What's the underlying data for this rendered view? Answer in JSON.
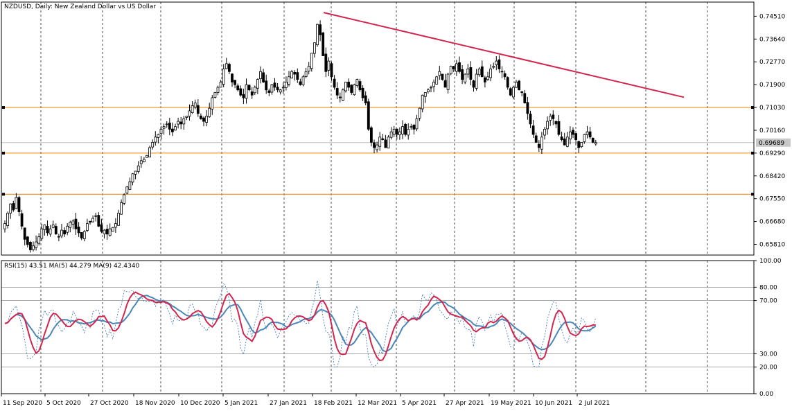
{
  "chart_data": [
    {
      "type": "candlestick",
      "title": "NZDUSD, Daily:  New Zealand Dollar vs US Dollar",
      "ylim": [
        0.654,
        0.7505
      ],
      "y_ticks": [
        "0.74510",
        "0.73640",
        "0.72770",
        "0.71900",
        "0.71030",
        "0.70160",
        "0.69290",
        "0.68420",
        "0.67550",
        "0.66680",
        "0.65810"
      ],
      "current_price": "0.69689",
      "horizontal_levels": [
        0.7103,
        0.6929,
        0.6772
      ],
      "trendline": {
        "from": {
          "date": "2021-02-18",
          "price": 0.7465
        },
        "to": {
          "date": "2021-07-17",
          "price": 0.7142
        }
      },
      "closes": [
        0.666,
        0.67,
        0.6735,
        0.6712,
        0.676,
        0.6705,
        0.665,
        0.66,
        0.658,
        0.656,
        0.6575,
        0.659,
        0.661,
        0.664,
        0.6655,
        0.6625,
        0.664,
        0.6655,
        0.662,
        0.661,
        0.6635,
        0.662,
        0.665,
        0.6665,
        0.667,
        0.664,
        0.6625,
        0.6605,
        0.663,
        0.666,
        0.6665,
        0.668,
        0.669,
        0.665,
        0.663,
        0.6635,
        0.662,
        0.664,
        0.6645,
        0.666,
        0.67,
        0.674,
        0.677,
        0.68,
        0.682,
        0.685,
        0.686,
        0.688,
        0.69,
        0.6905,
        0.692,
        0.695,
        0.697,
        0.699,
        0.7,
        0.702,
        0.703,
        0.704,
        0.702,
        0.701,
        0.703,
        0.705,
        0.704,
        0.706,
        0.707,
        0.709,
        0.711,
        0.712,
        0.708,
        0.706,
        0.705,
        0.707,
        0.71,
        0.714,
        0.716,
        0.718,
        0.72,
        0.725,
        0.727,
        0.724,
        0.72,
        0.719,
        0.717,
        0.715,
        0.714,
        0.719,
        0.717,
        0.715,
        0.718,
        0.721,
        0.724,
        0.72,
        0.717,
        0.716,
        0.719,
        0.718,
        0.717,
        0.717,
        0.718,
        0.72,
        0.722,
        0.724,
        0.723,
        0.721,
        0.719,
        0.722,
        0.724,
        0.726,
        0.731,
        0.735,
        0.742,
        0.738,
        0.73,
        0.724,
        0.728,
        0.722,
        0.718,
        0.715,
        0.714,
        0.717,
        0.72,
        0.718,
        0.716,
        0.719,
        0.721,
        0.717,
        0.714,
        0.712,
        0.702,
        0.697,
        0.695,
        0.696,
        0.699,
        0.698,
        0.695,
        0.699,
        0.701,
        0.702,
        0.7,
        0.701,
        0.703,
        0.7,
        0.702,
        0.703,
        0.702,
        0.706,
        0.71,
        0.715,
        0.716,
        0.717,
        0.718,
        0.72,
        0.722,
        0.724,
        0.721,
        0.718,
        0.723,
        0.726,
        0.725,
        0.727,
        0.724,
        0.721,
        0.723,
        0.725,
        0.721,
        0.718,
        0.723,
        0.725,
        0.722,
        0.72,
        0.722,
        0.725,
        0.726,
        0.728,
        0.725,
        0.724,
        0.722,
        0.718,
        0.715,
        0.718,
        0.72,
        0.717,
        0.716,
        0.712,
        0.708,
        0.704,
        0.7,
        0.697,
        0.695,
        0.699,
        0.702,
        0.705,
        0.707,
        0.706,
        0.704,
        0.7,
        0.698,
        0.696,
        0.699,
        0.701,
        0.7,
        0.698,
        0.695,
        0.697,
        0.7,
        0.701,
        0.699,
        0.697,
        0.6969
      ],
      "rsi_panel": {
        "label": "RSI(15) 43.51 MA(5) 44.279 MA(9) 42.4340",
        "y_ticks": [
          "100.00",
          "80.00",
          "70.00",
          "30.00",
          "20.00",
          "0.00"
        ],
        "ylim": [
          0,
          100
        ],
        "levels": [
          80,
          70,
          30,
          20
        ]
      },
      "x_tick_labels": [
        "11 Sep 2020",
        "5 Oct 2020",
        "27 Oct 2020",
        "18 Nov 2020",
        "10 Dec 2020",
        "5 Jan 2021",
        "27 Jan 2021",
        "18 Feb 2021",
        "12 Mar 2021",
        "5 Apr 2021",
        "27 Apr 2021",
        "19 May 2021",
        "10 Jun 2021",
        "2 Jul 2021"
      ],
      "colors": {
        "candle": "#000000",
        "trendline": "#d1264e",
        "level": "#f08000",
        "ma5": "#d1264e",
        "ma9": "#4a86b8",
        "rsi": "#3a6fb0",
        "grid": "#000000"
      }
    }
  ]
}
